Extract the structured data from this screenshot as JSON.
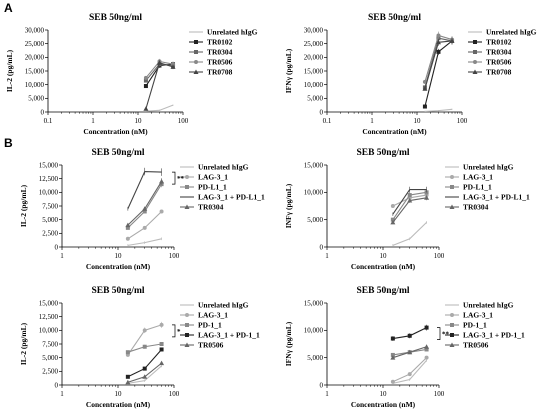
{
  "figure": {
    "panel_labels": [
      "A",
      "B"
    ]
  },
  "chart_data": [
    {
      "id": "A1",
      "type": "line",
      "panel_label": "A",
      "title": "SEB 50ng/ml",
      "xlabel": "Concentration (nM)",
      "ylabel": "IL-2 (pg/mL)",
      "x_scale": "log",
      "xlim": [
        0.1,
        100
      ],
      "x_ticks": [
        "0.1",
        "1",
        "10",
        "100"
      ],
      "ylim": [
        0,
        30000
      ],
      "y_ticks": [
        "0",
        "5,000",
        "10,000",
        "15,000",
        "20,000",
        "25,000",
        "30,000"
      ],
      "legend_position": "right",
      "annotation": "",
      "x": [
        15,
        30,
        60
      ],
      "series": [
        {
          "name": "Unrelated hIgG",
          "values": [
            300,
            600,
            2500
          ],
          "color": "#bbbbbb",
          "marker": "none"
        },
        {
          "name": "TR0102",
          "values": [
            9500,
            17000,
            17500
          ],
          "color": "#222222",
          "marker": "square"
        },
        {
          "name": "TR0304",
          "values": [
            11500,
            17500,
            17000
          ],
          "color": "#666666",
          "marker": "square"
        },
        {
          "name": "TR0506",
          "values": [
            12500,
            18500,
            17500
          ],
          "color": "#888888",
          "marker": "circle"
        },
        {
          "name": "TR0708",
          "values": [
            1200,
            18000,
            16500
          ],
          "color": "#444444",
          "marker": "triangle"
        }
      ]
    },
    {
      "id": "A2",
      "type": "line",
      "panel_label": "",
      "title": "SEB 50ng/ml",
      "xlabel": "Concentration (nM)",
      "ylabel": "IFNγ (pg/mL)",
      "x_scale": "log",
      "xlim": [
        0.1,
        100
      ],
      "x_ticks": [
        "0.1",
        "1",
        "10",
        "100"
      ],
      "ylim": [
        0,
        30000
      ],
      "y_ticks": [
        "0",
        "5,000",
        "10,000",
        "15,000",
        "20,000",
        "25,000",
        "30,000"
      ],
      "legend_position": "right",
      "annotation": "",
      "x": [
        15,
        30,
        60
      ],
      "series": [
        {
          "name": "Unrelated hIgG",
          "values": [
            200,
            500,
            1000
          ],
          "color": "#bbbbbb",
          "marker": "none"
        },
        {
          "name": "TR0102",
          "values": [
            2000,
            22000,
            26000
          ],
          "color": "#222222",
          "marker": "square"
        },
        {
          "name": "TR0304",
          "values": [
            9000,
            27000,
            26000
          ],
          "color": "#666666",
          "marker": "square"
        },
        {
          "name": "TR0506",
          "values": [
            11000,
            28000,
            26500
          ],
          "color": "#888888",
          "marker": "circle"
        },
        {
          "name": "TR0708",
          "values": [
            8500,
            25500,
            26000
          ],
          "color": "#444444",
          "marker": "triangle"
        }
      ]
    },
    {
      "id": "B1",
      "type": "line",
      "panel_label": "B",
      "title": "SEB 50ng/ml",
      "xlabel": "Concentration (nM)",
      "ylabel": "IL-2 (pg/mL)",
      "x_scale": "log",
      "xlim": [
        1,
        100
      ],
      "x_ticks": [
        "1",
        "10",
        "100"
      ],
      "ylim": [
        0,
        15000
      ],
      "y_ticks": [
        "0",
        "2,500",
        "5,000",
        "7,500",
        "10,000",
        "12,500",
        "15,000"
      ],
      "legend_position": "right",
      "annotation": "**",
      "x": [
        15,
        30,
        60
      ],
      "series": [
        {
          "name": "Unrelated hIgG",
          "values": [
            300,
            800,
            1500
          ],
          "color": "#bbbbbb",
          "marker": "none"
        },
        {
          "name": "LAG-3_1",
          "values": [
            1500,
            3500,
            6500
          ],
          "color": "#aaaaaa",
          "marker": "circle"
        },
        {
          "name": "PD-L1_1",
          "values": [
            3500,
            6500,
            11500
          ],
          "color": "#888888",
          "marker": "square"
        },
        {
          "name": "LAG-3_1 + PD-L1_1",
          "values": [
            7000,
            13800,
            13700
          ],
          "color": "#444444",
          "marker": "none"
        },
        {
          "name": "TR0304",
          "values": [
            4000,
            7000,
            12000
          ],
          "color": "#666666",
          "marker": "triangle"
        }
      ]
    },
    {
      "id": "B2",
      "type": "line",
      "panel_label": "",
      "title": "SEB 50ng/ml",
      "xlabel": "Concentration (nM)",
      "ylabel": "INFγ (pg/mL)",
      "x_scale": "log",
      "xlim": [
        1,
        100
      ],
      "x_ticks": [
        "1",
        "10",
        "100"
      ],
      "ylim": [
        0,
        15000
      ],
      "y_ticks": [
        "0",
        "5,000",
        "10,000",
        "15,000"
      ],
      "legend_position": "right",
      "annotation": "",
      "x": [
        15,
        30,
        60
      ],
      "series": [
        {
          "name": "Unrelated hIgG",
          "values": [
            300,
            1500,
            4500
          ],
          "color": "#bbbbbb",
          "marker": "none"
        },
        {
          "name": "LAG-3_1",
          "values": [
            7500,
            9000,
            9500
          ],
          "color": "#aaaaaa",
          "marker": "circle"
        },
        {
          "name": "PD-L1_1",
          "values": [
            5000,
            9500,
            10000
          ],
          "color": "#888888",
          "marker": "square"
        },
        {
          "name": "LAG-3_1 + PD-L1_1",
          "values": [
            6000,
            10500,
            10500
          ],
          "color": "#444444",
          "marker": "none"
        },
        {
          "name": "TR0304",
          "values": [
            4500,
            8500,
            9000
          ],
          "color": "#666666",
          "marker": "triangle"
        }
      ]
    },
    {
      "id": "B3",
      "type": "line",
      "panel_label": "",
      "title": "SEB 50ng/ml",
      "xlabel": "Concentration (nM)",
      "ylabel": "IL-2 (pg/mL)",
      "x_scale": "log",
      "xlim": [
        1,
        100
      ],
      "x_ticks": [
        "1",
        "10",
        "100"
      ],
      "ylim": [
        0,
        15000
      ],
      "y_ticks": [
        "0",
        "2,500",
        "5,000",
        "7,500",
        "10,000",
        "12,500",
        "15,000"
      ],
      "legend_position": "right",
      "annotation": "*",
      "x": [
        15,
        30,
        60
      ],
      "series": [
        {
          "name": "Unrelated hIgG",
          "values": [
            300,
            800,
            3500
          ],
          "color": "#bbbbbb",
          "marker": "none"
        },
        {
          "name": "LAG-3_1",
          "values": [
            5500,
            10000,
            11000
          ],
          "color": "#aaaaaa",
          "marker": "circle"
        },
        {
          "name": "PD-1_1",
          "values": [
            6000,
            7000,
            7500
          ],
          "color": "#888888",
          "marker": "square"
        },
        {
          "name": "LAG-3_1 + PD-1_1",
          "values": [
            1500,
            3000,
            6500
          ],
          "color": "#222222",
          "marker": "square"
        },
        {
          "name": "TR0506",
          "values": [
            500,
            1500,
            4000
          ],
          "color": "#666666",
          "marker": "triangle"
        }
      ]
    },
    {
      "id": "B4",
      "type": "line",
      "panel_label": "",
      "title": "SEB 50ng/ml",
      "xlabel": "Concentration (nM)",
      "ylabel": "IFNγ (pg/mL)",
      "x_scale": "log",
      "xlim": [
        1,
        100
      ],
      "x_ticks": [
        "1",
        "10",
        "100"
      ],
      "ylim": [
        0,
        15000
      ],
      "y_ticks": [
        "0",
        "5,000",
        "10,000",
        "15,000"
      ],
      "legend_position": "right",
      "annotation": "**",
      "x": [
        15,
        30,
        60
      ],
      "series": [
        {
          "name": "Unrelated hIgG",
          "values": [
            300,
            1000,
            4500
          ],
          "color": "#bbbbbb",
          "marker": "none"
        },
        {
          "name": "LAG-3_1",
          "values": [
            600,
            2000,
            5000
          ],
          "color": "#aaaaaa",
          "marker": "circle"
        },
        {
          "name": "PD-1_1",
          "values": [
            5500,
            6000,
            6500
          ],
          "color": "#888888",
          "marker": "square"
        },
        {
          "name": "LAG-3_1 + PD-1_1",
          "values": [
            8500,
            9000,
            10500
          ],
          "color": "#222222",
          "marker": "square"
        },
        {
          "name": "TR0506",
          "values": [
            5000,
            6000,
            7000
          ],
          "color": "#666666",
          "marker": "triangle"
        }
      ]
    }
  ]
}
